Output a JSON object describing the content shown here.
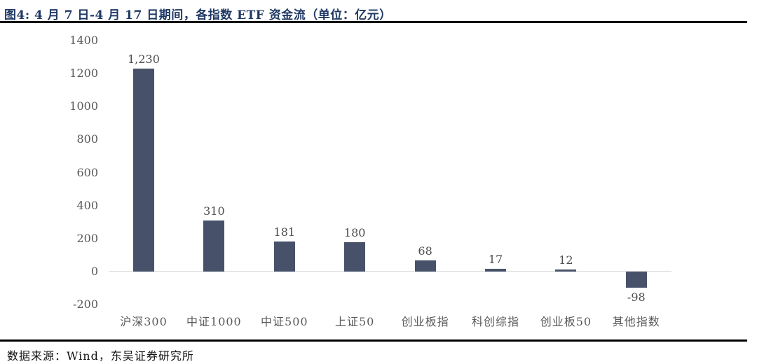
{
  "header": {
    "title": "图4:  4 月 7 日-4 月 17 日期间，各指数 ETF 资金流（单位：亿元）"
  },
  "footer": {
    "source": "数据来源：Wind，东吴证券研究所"
  },
  "colors": {
    "bar": "#47526A",
    "title_text": "#1F3864",
    "axis_text": "#595959",
    "value_label_text": "#4D4D4D",
    "zero_line": "#D9D9D9",
    "divider": "#000000"
  },
  "chart_data": {
    "type": "bar",
    "title": "图4: 4月7日-4月17日期间，各指数ETF资金流（单位：亿元）",
    "unit": "亿元",
    "categories": [
      "沪深300",
      "中证1000",
      "中证500",
      "上证50",
      "创业板指",
      "科创综指",
      "创业板50",
      "其他指数"
    ],
    "values": [
      1230,
      310,
      181,
      180,
      68,
      17,
      12,
      -98
    ],
    "value_labels": [
      "1,230",
      "310",
      "181",
      "180",
      "68",
      "17",
      "12",
      "-98"
    ],
    "yticks": [
      1400,
      1200,
      1000,
      800,
      600,
      400,
      200,
      0,
      -200
    ],
    "ylim": [
      -200,
      1400
    ],
    "xlabel": "",
    "ylabel": "",
    "grid": false,
    "legend_position": "none"
  }
}
